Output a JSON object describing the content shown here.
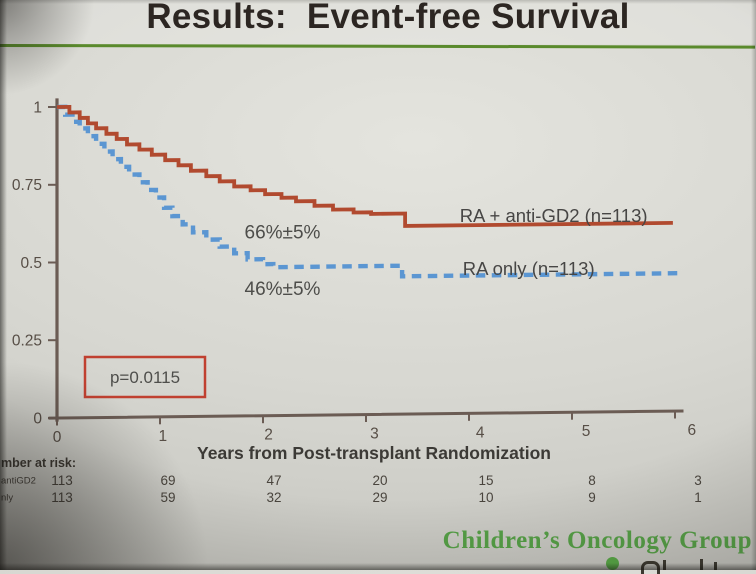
{
  "slide": {
    "title": "Results:  Event-free Survival",
    "footer": "Children’s Oncology Group",
    "accent_green": "#5a8a2c",
    "footer_green": "#55a046"
  },
  "chart_data": {
    "type": "line",
    "subtype": "kaplan-meier-step",
    "title": "Results: Event-free Survival",
    "xlabel": "Years from Post-transplant Randomization",
    "ylabel": "",
    "xlim": [
      0,
      6
    ],
    "ylim": [
      0,
      1
    ],
    "grid": false,
    "x_ticks": [
      "0",
      "1",
      "2",
      "3",
      "4",
      "5",
      "6"
    ],
    "y_ticks": [
      "1",
      "0.75",
      "0.5",
      "0.25",
      "0"
    ],
    "y_tick_values": [
      1,
      0.75,
      0.5,
      0.25,
      0
    ],
    "p_value": "p=0.0115",
    "axis_color": "#6b5c54",
    "series": [
      {
        "name": "RA + anti-GD2  (n=113)",
        "color": "#b14a2f",
        "style": "solid",
        "points": [
          [
            0,
            1.0
          ],
          [
            0.12,
            0.982
          ],
          [
            0.22,
            0.964
          ],
          [
            0.3,
            0.946
          ],
          [
            0.38,
            0.93
          ],
          [
            0.48,
            0.912
          ],
          [
            0.58,
            0.895
          ],
          [
            0.68,
            0.877
          ],
          [
            0.8,
            0.86
          ],
          [
            0.92,
            0.843
          ],
          [
            1.05,
            0.825
          ],
          [
            1.18,
            0.808
          ],
          [
            1.3,
            0.79
          ],
          [
            1.45,
            0.772
          ],
          [
            1.58,
            0.755
          ],
          [
            1.72,
            0.738
          ],
          [
            1.88,
            0.725
          ],
          [
            2.02,
            0.712
          ],
          [
            2.18,
            0.7
          ],
          [
            2.32,
            0.688
          ],
          [
            2.5,
            0.673
          ],
          [
            2.68,
            0.66
          ],
          [
            2.88,
            0.65
          ],
          [
            3.05,
            0.645
          ],
          [
            3.38,
            0.605
          ],
          [
            5.98,
            0.605
          ]
        ]
      },
      {
        "name": "RA only  (n=113)",
        "color": "#5b96d2",
        "style": "dashed",
        "points": [
          [
            0,
            1.0
          ],
          [
            0.08,
            0.975
          ],
          [
            0.15,
            0.952
          ],
          [
            0.22,
            0.93
          ],
          [
            0.3,
            0.905
          ],
          [
            0.38,
            0.88
          ],
          [
            0.46,
            0.855
          ],
          [
            0.54,
            0.83
          ],
          [
            0.62,
            0.805
          ],
          [
            0.7,
            0.78
          ],
          [
            0.8,
            0.755
          ],
          [
            0.88,
            0.73
          ],
          [
            0.96,
            0.705
          ],
          [
            1.04,
            0.672
          ],
          [
            1.12,
            0.645
          ],
          [
            1.22,
            0.618
          ],
          [
            1.32,
            0.592
          ],
          [
            1.45,
            0.568
          ],
          [
            1.58,
            0.545
          ],
          [
            1.72,
            0.523
          ],
          [
            1.85,
            0.503
          ],
          [
            2.0,
            0.487
          ],
          [
            2.1,
            0.477
          ],
          [
            3.28,
            0.477
          ],
          [
            3.35,
            0.443
          ],
          [
            6.05,
            0.443
          ]
        ]
      }
    ],
    "annotations": [
      {
        "text": "66%±5%",
        "x": 1.82,
        "y": 0.57
      },
      {
        "text": "46%±5%",
        "x": 1.82,
        "y": 0.39
      }
    ],
    "legend_labels": [
      {
        "text": "RA + anti-GD2  (n=113)",
        "x": 3.91,
        "y": 0.615
      },
      {
        "text": "RA only  (n=113)",
        "x": 3.94,
        "y": 0.445
      }
    ],
    "at_risk": {
      "header": "mber at risk:",
      "rows": [
        {
          "label": "antiGD2",
          "values": [
            "113",
            "69",
            "47",
            "20",
            "15",
            "8",
            "3"
          ]
        },
        {
          "label": "nly",
          "values": [
            "113",
            "59",
            "32",
            "29",
            "10",
            "9",
            "1"
          ]
        }
      ]
    }
  }
}
